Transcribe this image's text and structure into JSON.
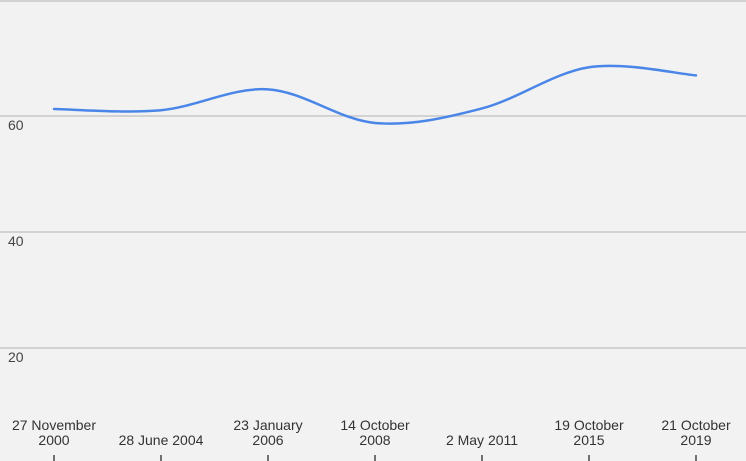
{
  "chart_data": {
    "type": "line",
    "title": "",
    "xlabel": "",
    "ylabel": "",
    "x": [
      "27 November 2000",
      "28 June 2004",
      "23 January 2006",
      "14 October 2008",
      "2 May 2011",
      "19 October 2015",
      "21 October 2019"
    ],
    "x_tick_lines": [
      [
        "27 November",
        "2000"
      ],
      [
        "28 June 2004"
      ],
      [
        "23 January",
        "2006"
      ],
      [
        "14 October",
        "2008"
      ],
      [
        "2 May 2011"
      ],
      [
        "19 October",
        "2015"
      ],
      [
        "21 October",
        "2019"
      ]
    ],
    "series": [
      {
        "values": [
          61.2,
          61.0,
          64.6,
          58.8,
          61.3,
          68.4,
          67.0
        ],
        "color": "#4a86e8"
      }
    ],
    "yticks": [
      20,
      40,
      60
    ],
    "ylim": [
      0,
      80
    ],
    "grid": true,
    "legend": "none"
  }
}
